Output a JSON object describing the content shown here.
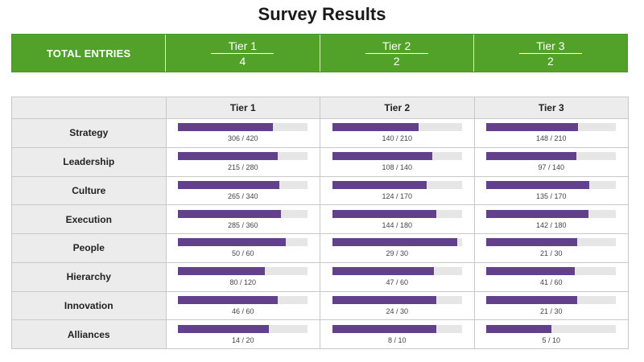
{
  "title": "Survey Results",
  "totals": {
    "label": "TOTAL ENTRIES",
    "tiers": [
      {
        "name": "Tier 1",
        "count": "4"
      },
      {
        "name": "Tier 2",
        "count": "2"
      },
      {
        "name": "Tier 3",
        "count": "2"
      }
    ]
  },
  "colors": {
    "banner_green": "#52a229",
    "bar_purple": "#63408c",
    "bar_track": "#e6e6e6",
    "header_gray": "#ececec"
  },
  "table": {
    "header_corner": "",
    "columns": [
      "Tier 1",
      "Tier 2",
      "Tier 3"
    ],
    "rows": [
      {
        "label": "Strategy",
        "cells": [
          {
            "text": "306 / 420",
            "value": 306,
            "max": 420
          },
          {
            "text": "140 / 210",
            "value": 140,
            "max": 210
          },
          {
            "text": "148 / 210",
            "value": 148,
            "max": 210
          }
        ]
      },
      {
        "label": "Leadership",
        "cells": [
          {
            "text": "215 / 280",
            "value": 215,
            "max": 280
          },
          {
            "text": "108 / 140",
            "value": 108,
            "max": 140
          },
          {
            "text": "97 / 140",
            "value": 97,
            "max": 140
          }
        ]
      },
      {
        "label": "Culture",
        "cells": [
          {
            "text": "265 / 340",
            "value": 265,
            "max": 340
          },
          {
            "text": "124 / 170",
            "value": 124,
            "max": 170
          },
          {
            "text": "135 / 170",
            "value": 135,
            "max": 170
          }
        ]
      },
      {
        "label": "Execution",
        "cells": [
          {
            "text": "285 / 360",
            "value": 285,
            "max": 360
          },
          {
            "text": "144 / 180",
            "value": 144,
            "max": 180
          },
          {
            "text": "142 / 180",
            "value": 142,
            "max": 180
          }
        ]
      },
      {
        "label": "People",
        "cells": [
          {
            "text": "50 / 60",
            "value": 50,
            "max": 60
          },
          {
            "text": "29 / 30",
            "value": 29,
            "max": 30
          },
          {
            "text": "21 / 30",
            "value": 21,
            "max": 30
          }
        ]
      },
      {
        "label": "Hierarchy",
        "cells": [
          {
            "text": "80 / 120",
            "value": 80,
            "max": 120
          },
          {
            "text": "47 / 60",
            "value": 47,
            "max": 60
          },
          {
            "text": "41 / 60",
            "value": 41,
            "max": 60
          }
        ]
      },
      {
        "label": "Innovation",
        "cells": [
          {
            "text": "46 / 60",
            "value": 46,
            "max": 60
          },
          {
            "text": "24 / 30",
            "value": 24,
            "max": 30
          },
          {
            "text": "21 / 30",
            "value": 21,
            "max": 30
          }
        ]
      },
      {
        "label": "Alliances",
        "cells": [
          {
            "text": "14 / 20",
            "value": 14,
            "max": 20
          },
          {
            "text": "8 / 10",
            "value": 8,
            "max": 10
          },
          {
            "text": "5 / 10",
            "value": 5,
            "max": 10
          }
        ]
      }
    ]
  }
}
